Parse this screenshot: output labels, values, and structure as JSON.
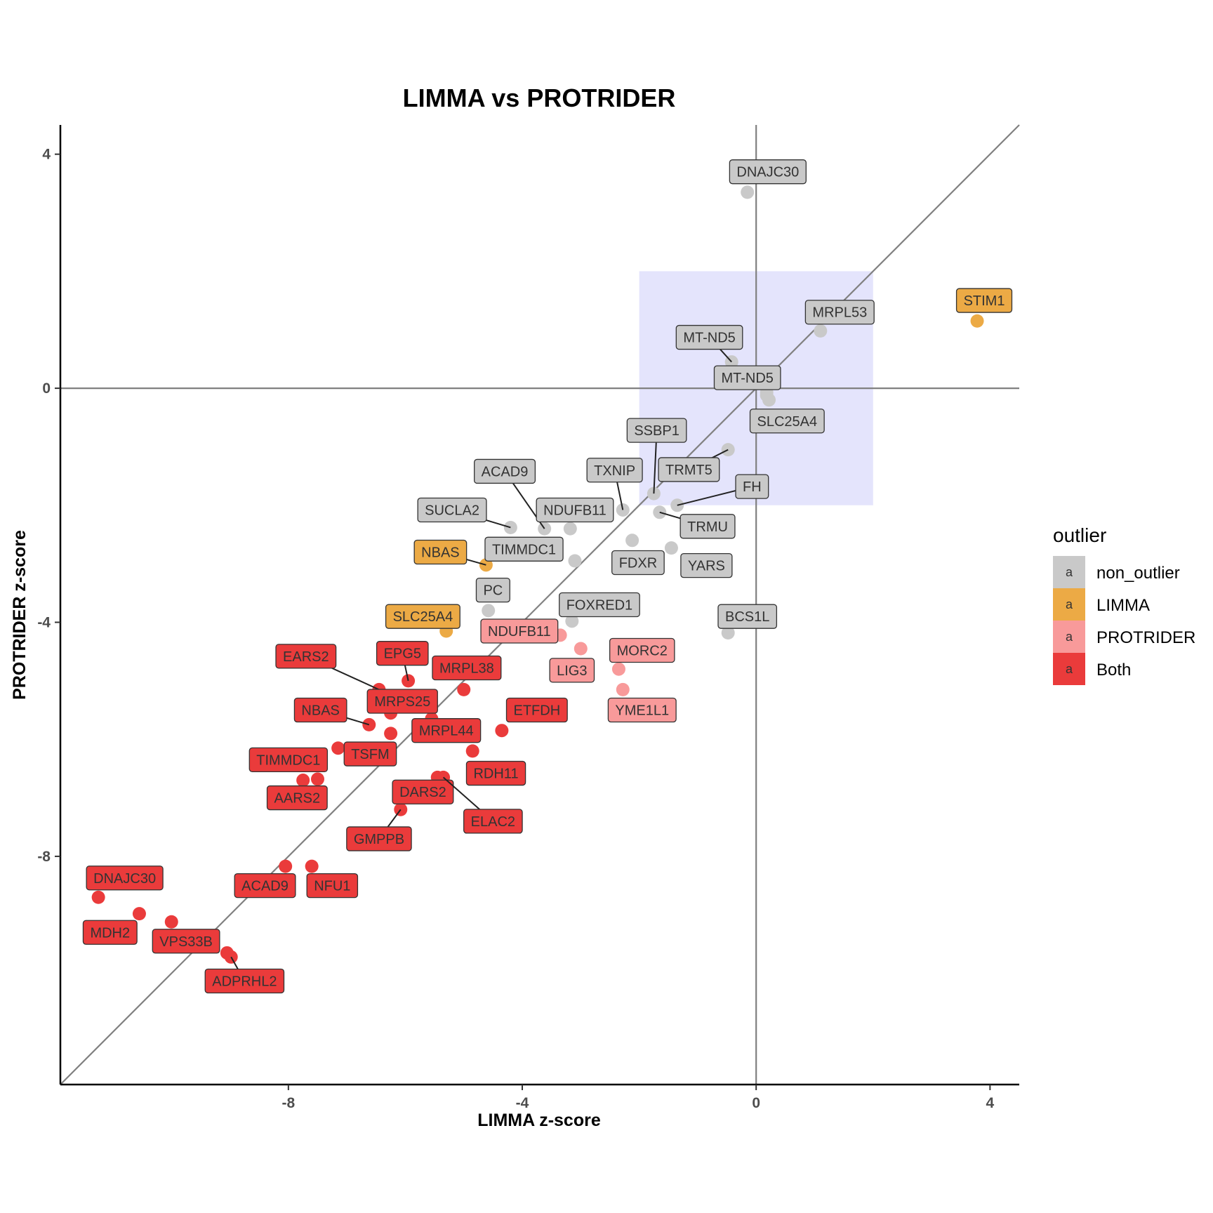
{
  "chart_data": {
    "type": "scatter",
    "title": "LIMMA vs PROTRIDER",
    "xlabel": "LIMMA z-score",
    "ylabel": "PROTRIDER z-score",
    "xlim": [
      -11.9,
      4.5
    ],
    "ylim": [
      -11.9,
      4.5
    ],
    "x_ticks": [
      -8,
      -4,
      0,
      4
    ],
    "y_ticks": [
      4,
      0,
      -4,
      -8
    ],
    "grid": false,
    "reference_lines": {
      "identity": true,
      "x0": true,
      "y0": true
    },
    "highlight_box": {
      "x": [
        -2,
        2
      ],
      "y": [
        -2,
        2
      ],
      "color": "#e4e4fc"
    },
    "legend": {
      "title": "outlier",
      "placement": "right",
      "key_glyph": "a",
      "entries": [
        {
          "key": "non_outlier",
          "label": "non_outlier",
          "color": "#c9c9c9"
        },
        {
          "key": "LIMMA",
          "label": "LIMMA",
          "color": "#ecaa45"
        },
        {
          "key": "PROTRIDER",
          "label": "PROTRIDER",
          "color": "#f89a9a"
        },
        {
          "key": "Both",
          "label": "Both",
          "color": "#ea3b3b"
        }
      ]
    },
    "points": [
      {
        "gene": "DNAJC30",
        "x": -0.15,
        "y": 3.35,
        "group": "non_outlier",
        "label": {
          "x": 0.2,
          "y": 3.7,
          "leader": false
        }
      },
      {
        "gene": "STIM1",
        "x": 3.78,
        "y": 1.15,
        "group": "LIMMA",
        "label": {
          "x": 3.9,
          "y": 1.5,
          "leader": false
        }
      },
      {
        "gene": "MRPL53",
        "x": 1.1,
        "y": 0.98,
        "group": "non_outlier",
        "label": {
          "x": 1.43,
          "y": 1.3,
          "leader": false
        }
      },
      {
        "gene": "MT-ND5",
        "x": -0.42,
        "y": 0.45,
        "group": "non_outlier",
        "label": {
          "x": -0.8,
          "y": 0.87,
          "leader": true
        }
      },
      {
        "gene": "MT-ND5",
        "x": 0.18,
        "y": -0.07,
        "group": "non_outlier",
        "label": {
          "x": -0.15,
          "y": 0.18,
          "leader": false
        }
      },
      {
        "gene": "SLC25A4",
        "x": 0.22,
        "y": -0.2,
        "group": "non_outlier",
        "label": {
          "x": 0.53,
          "y": -0.56,
          "leader": false
        }
      },
      {
        "gene": "",
        "x": 0.18,
        "y": -0.12,
        "group": "non_outlier"
      },
      {
        "gene": "SSBP1",
        "x": -1.75,
        "y": -1.8,
        "group": "non_outlier",
        "label": {
          "x": -1.7,
          "y": -0.72,
          "leader": true
        }
      },
      {
        "gene": "TRMT5",
        "x": -0.48,
        "y": -1.05,
        "group": "non_outlier",
        "label": {
          "x": -1.15,
          "y": -1.39,
          "leader": true
        }
      },
      {
        "gene": "TXNIP",
        "x": -2.28,
        "y": -2.08,
        "group": "non_outlier",
        "label": {
          "x": -2.42,
          "y": -1.4,
          "leader": true
        }
      },
      {
        "gene": "FH",
        "x": -1.35,
        "y": -2.0,
        "group": "non_outlier",
        "label": {
          "x": -0.07,
          "y": -1.68,
          "leader": true
        }
      },
      {
        "gene": "TRMU",
        "x": -1.65,
        "y": -2.12,
        "group": "non_outlier",
        "label": {
          "x": -0.83,
          "y": -2.36,
          "leader": true
        }
      },
      {
        "gene": "FDXR",
        "x": -2.12,
        "y": -2.6,
        "group": "non_outlier",
        "label": {
          "x": -2.02,
          "y": -2.98,
          "leader": false
        }
      },
      {
        "gene": "YARS",
        "x": -1.45,
        "y": -2.73,
        "group": "non_outlier",
        "label": {
          "x": -0.85,
          "y": -3.03,
          "leader": false
        }
      },
      {
        "gene": "ACAD9",
        "x": -3.62,
        "y": -2.4,
        "group": "non_outlier",
        "label": {
          "x": -4.3,
          "y": -1.42,
          "leader": true
        }
      },
      {
        "gene": "SUCLA2",
        "x": -4.2,
        "y": -2.38,
        "group": "non_outlier",
        "label": {
          "x": -5.2,
          "y": -2.08,
          "leader": true
        }
      },
      {
        "gene": "NDUFB11",
        "x": -3.18,
        "y": -2.4,
        "group": "non_outlier",
        "label": {
          "x": -3.1,
          "y": -2.08,
          "leader": false
        }
      },
      {
        "gene": "TIMMDC1",
        "x": -3.1,
        "y": -2.95,
        "group": "non_outlier",
        "label": {
          "x": -3.97,
          "y": -2.75,
          "leader": false
        }
      },
      {
        "gene": "NBAS",
        "x": -4.62,
        "y": -3.02,
        "group": "LIMMA",
        "label": {
          "x": -5.4,
          "y": -2.8,
          "leader": true
        }
      },
      {
        "gene": "PC",
        "x": -4.58,
        "y": -3.8,
        "group": "non_outlier",
        "label": {
          "x": -4.5,
          "y": -3.45,
          "leader": false
        }
      },
      {
        "gene": "FOXRED1",
        "x": -3.15,
        "y": -3.98,
        "group": "non_outlier",
        "label": {
          "x": -2.68,
          "y": -3.7,
          "leader": false
        }
      },
      {
        "gene": "BCS1L",
        "x": -0.48,
        "y": -4.18,
        "group": "non_outlier",
        "label": {
          "x": -0.15,
          "y": -3.9,
          "leader": false
        }
      },
      {
        "gene": "SLC25A4",
        "x": -5.3,
        "y": -4.15,
        "group": "LIMMA",
        "label": {
          "x": -5.7,
          "y": -3.9,
          "leader": false
        }
      },
      {
        "gene": "NDUFB11",
        "x": -3.35,
        "y": -4.22,
        "group": "PROTRIDER",
        "label": {
          "x": -4.05,
          "y": -4.15,
          "leader": false
        }
      },
      {
        "gene": "LIG3",
        "x": -3.0,
        "y": -4.45,
        "group": "PROTRIDER",
        "label": {
          "x": -3.15,
          "y": -4.82,
          "leader": false
        }
      },
      {
        "gene": "MORC2",
        "x": -2.35,
        "y": -4.8,
        "group": "PROTRIDER",
        "label": {
          "x": -1.95,
          "y": -4.48,
          "leader": false
        }
      },
      {
        "gene": "YME1L1",
        "x": -2.28,
        "y": -5.15,
        "group": "PROTRIDER",
        "label": {
          "x": -1.95,
          "y": -5.5,
          "leader": false
        }
      },
      {
        "gene": "EARS2",
        "x": -6.45,
        "y": -5.15,
        "group": "Both",
        "label": {
          "x": -7.7,
          "y": -4.58,
          "leader": true
        }
      },
      {
        "gene": "EPG5",
        "x": -5.95,
        "y": -5.0,
        "group": "Both",
        "label": {
          "x": -6.05,
          "y": -4.53,
          "leader": true
        }
      },
      {
        "gene": "MRPL38",
        "x": -5.0,
        "y": -5.15,
        "group": "Both",
        "label": {
          "x": -4.95,
          "y": -4.78,
          "leader": false
        }
      },
      {
        "gene": "MRPS25",
        "x": -6.25,
        "y": -5.55,
        "group": "Both",
        "label": {
          "x": -6.05,
          "y": -5.35,
          "leader": true
        }
      },
      {
        "gene": "MRPL44",
        "x": -5.55,
        "y": -5.65,
        "group": "Both",
        "label": {
          "x": -5.3,
          "y": -5.85,
          "leader": true
        }
      },
      {
        "gene": "NBAS",
        "x": -6.62,
        "y": -5.75,
        "group": "Both",
        "label": {
          "x": -7.45,
          "y": -5.5,
          "leader": true
        }
      },
      {
        "gene": "ETFDH",
        "x": -4.35,
        "y": -5.85,
        "group": "Both",
        "label": {
          "x": -3.75,
          "y": -5.5,
          "leader": false
        }
      },
      {
        "gene": "",
        "x": -6.25,
        "y": -5.9,
        "group": "Both"
      },
      {
        "gene": "TSFM",
        "x": -7.15,
        "y": -6.15,
        "group": "Both",
        "label": {
          "x": -6.6,
          "y": -6.25,
          "leader": false
        }
      },
      {
        "gene": "RDH11",
        "x": -4.85,
        "y": -6.2,
        "group": "Both",
        "label": {
          "x": -4.45,
          "y": -6.58,
          "leader": false
        }
      },
      {
        "gene": "TIMMDC1",
        "x": -7.5,
        "y": -6.68,
        "group": "Both",
        "label": {
          "x": -8.0,
          "y": -6.35,
          "leader": false
        }
      },
      {
        "gene": "AARS2",
        "x": -7.75,
        "y": -6.7,
        "group": "Both",
        "label": {
          "x": -7.85,
          "y": -7.0,
          "leader": false
        }
      },
      {
        "gene": "DARS2",
        "x": -5.45,
        "y": -6.65,
        "group": "Both",
        "label": {
          "x": -5.7,
          "y": -6.9,
          "leader": false
        }
      },
      {
        "gene": "ELAC2",
        "x": -5.35,
        "y": -6.65,
        "group": "Both",
        "label": {
          "x": -4.5,
          "y": -7.4,
          "leader": true
        }
      },
      {
        "gene": "GMPPB",
        "x": -6.08,
        "y": -7.2,
        "group": "Both",
        "label": {
          "x": -6.45,
          "y": -7.7,
          "leader": true
        }
      },
      {
        "gene": "ACAD9",
        "x": -8.05,
        "y": -8.17,
        "group": "Both",
        "label": {
          "x": -8.4,
          "y": -8.5,
          "leader": false
        }
      },
      {
        "gene": "NFU1",
        "x": -7.6,
        "y": -8.17,
        "group": "Both",
        "label": {
          "x": -7.25,
          "y": -8.5,
          "leader": false
        }
      },
      {
        "gene": "DNAJC30",
        "x": -11.25,
        "y": -8.7,
        "group": "Both",
        "label": {
          "x": -10.8,
          "y": -8.37,
          "leader": false
        }
      },
      {
        "gene": "MDH2",
        "x": -10.55,
        "y": -8.98,
        "group": "Both",
        "label": {
          "x": -11.05,
          "y": -9.3,
          "leader": false
        }
      },
      {
        "gene": "",
        "x": -10.0,
        "y": -9.12,
        "group": "Both"
      },
      {
        "gene": "VPS33B",
        "x": -9.05,
        "y": -9.65,
        "group": "Both",
        "label": {
          "x": -9.75,
          "y": -9.45,
          "leader": false
        }
      },
      {
        "gene": "ADPRHL2",
        "x": -8.98,
        "y": -9.72,
        "group": "Both",
        "label": {
          "x": -8.75,
          "y": -10.13,
          "leader": true
        }
      }
    ]
  }
}
